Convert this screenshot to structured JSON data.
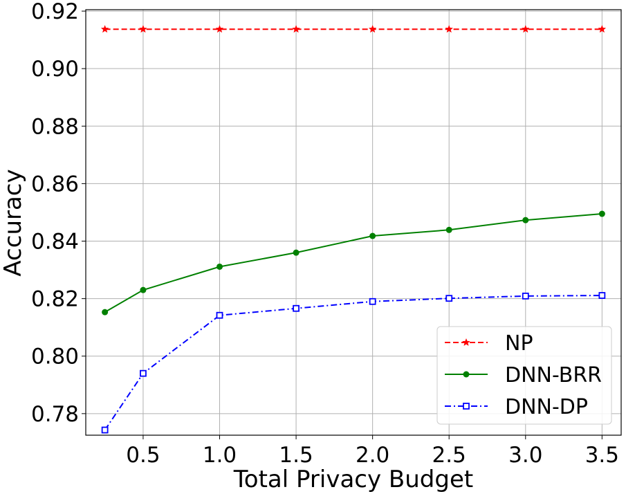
{
  "chart_data": {
    "type": "line",
    "title": "",
    "xlabel": "Total Privacy Budget",
    "ylabel": "Accuracy",
    "xlim": [
      0.125,
      3.625
    ],
    "ylim": [
      0.7725,
      0.9205
    ],
    "x": [
      0.25,
      0.5,
      1.0,
      1.5,
      2.0,
      2.5,
      3.0,
      3.5
    ],
    "x_ticks": [
      0.5,
      1.0,
      1.5,
      2.0,
      2.5,
      3.0,
      3.5
    ],
    "x_tick_labels": [
      "0.5",
      "1.0",
      "1.5",
      "2.0",
      "2.5",
      "3.0",
      "3.5"
    ],
    "y_ticks": [
      0.78,
      0.8,
      0.82,
      0.84,
      0.86,
      0.88,
      0.9,
      0.92
    ],
    "y_tick_labels": [
      "0.78",
      "0.80",
      "0.82",
      "0.84",
      "0.86",
      "0.88",
      "0.90",
      "0.92"
    ],
    "grid": true,
    "legend_position": "bottom-right",
    "series": [
      {
        "name": "NP",
        "color": "#ff0000",
        "linestyle": "dashed",
        "marker": "star",
        "values": [
          0.9137,
          0.9137,
          0.9137,
          0.9137,
          0.9137,
          0.9137,
          0.9137,
          0.9137
        ]
      },
      {
        "name": "DNN-BRR",
        "color": "#008000",
        "linestyle": "solid",
        "marker": "circle",
        "values": [
          0.8153,
          0.823,
          0.8311,
          0.836,
          0.8418,
          0.8439,
          0.8473,
          0.8495
        ]
      },
      {
        "name": "DNN-DP",
        "color": "#0000ff",
        "linestyle": "dashdot",
        "marker": "square",
        "values": [
          0.7743,
          0.794,
          0.8142,
          0.8166,
          0.819,
          0.8201,
          0.8209,
          0.8211
        ]
      }
    ]
  }
}
